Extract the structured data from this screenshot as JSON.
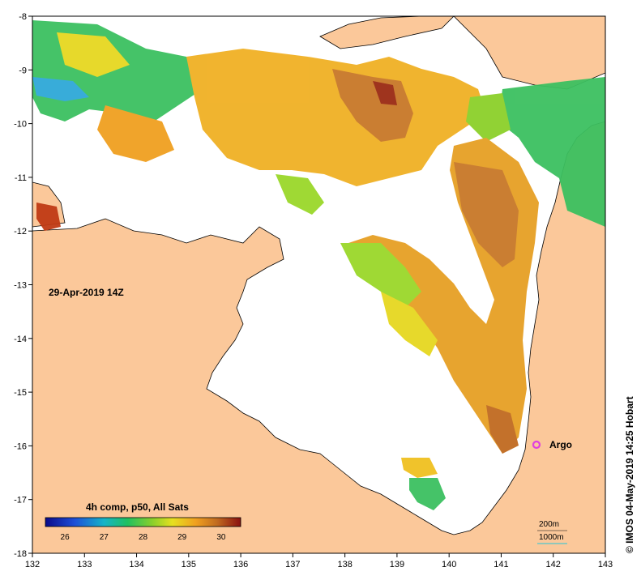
{
  "map": {
    "x_axis": {
      "min": 132,
      "max": 143,
      "ticks": [
        "132",
        "133",
        "134",
        "135",
        "136",
        "137",
        "138",
        "139",
        "140",
        "141",
        "142",
        "143"
      ]
    },
    "y_axis": {
      "min": -18,
      "max": -8,
      "ticks": [
        "-8",
        "-9",
        "-10",
        "-11",
        "-12",
        "-13",
        "-14",
        "-15",
        "-16",
        "-17",
        "-18"
      ]
    },
    "timestamp_label": "29-Apr-2019 14Z",
    "legend": {
      "title": "4h comp, p50, All Sats",
      "tick_labels": [
        "26",
        "27",
        "28",
        "29",
        "30"
      ],
      "min": 25.5,
      "max": 30.5
    },
    "float_marker": {
      "label": "Argo",
      "lon": 141.7,
      "lat": -16.0,
      "color": "#e040e0"
    },
    "contour_legend": {
      "line1": "200m",
      "line2": "1000m",
      "line2_color": "#26c6da"
    },
    "credit": "© IMOS 04-May-2019 14:25 Hobart",
    "colors": {
      "land": "#fbc89a",
      "no_data": "#ffffff",
      "coast": "#000000"
    }
  }
}
